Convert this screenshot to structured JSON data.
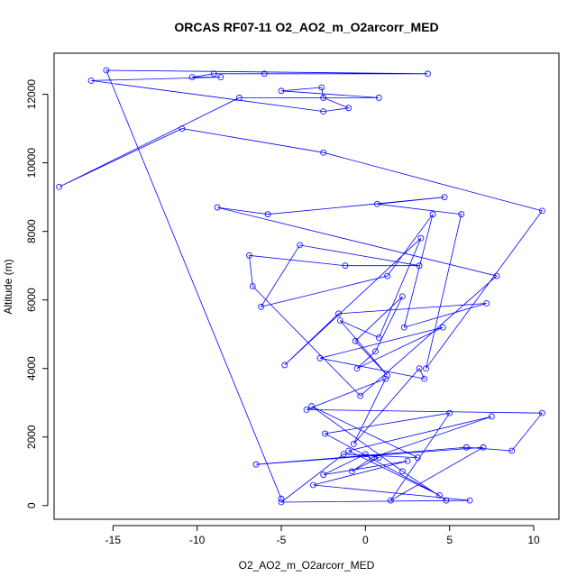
{
  "chart_data": {
    "type": "line",
    "title": "ORCAS RF07-11 O2_AO2_m_O2arcorr_MED",
    "xlabel": "O2_AO2_m_O2arcorr_MED",
    "ylabel": "Altitude (m)",
    "xlim": [
      -18.5,
      11.5
    ],
    "ylim": [
      -400,
      13200
    ],
    "xticks": [
      -15,
      -10,
      -5,
      0,
      5,
      10
    ],
    "yticks": [
      0,
      2000,
      4000,
      6000,
      8000,
      10000,
      12000
    ],
    "grid": false,
    "color": "#0000ff",
    "marker": "open-circle",
    "series": [
      {
        "x": [
          4.8,
          2.2,
          -3.2,
          3.1,
          -1.3,
          -5.0,
          6.2,
          -3.1,
          2.5,
          -2.5,
          0.0,
          0.8,
          -0.8,
          0.4,
          7.5,
          -1.0,
          4.4,
          -2.4,
          5.0,
          1.5,
          7.0,
          -6.5,
          6.0,
          8.7,
          10.5,
          -3.5,
          1.2,
          -0.7,
          3.2,
          3.5,
          -2.7,
          4.6,
          -0.5,
          0.6,
          2.2,
          -0.6,
          1.3,
          -1.5,
          0.8,
          3.3,
          -4.8,
          -1.6,
          7.2,
          2.3,
          4.0,
          1.3,
          -6.2,
          -3.9,
          3.2,
          -1.2,
          -6.9,
          -6.7,
          -0.3,
          7.8,
          -8.8,
          -5.8,
          4.7,
          0.7,
          5.7,
          3.6,
          10.5,
          -2.5,
          -10.9,
          -18.2,
          -7.5,
          0.8,
          -5.0,
          -2.6,
          -2.5,
          -1.0,
          -2.5,
          -16.3,
          -8.6,
          -10.3,
          -9.0,
          -6.0,
          3.7,
          -15.4,
          -5.0
        ],
        "y": [
          150,
          1000,
          2900,
          1400,
          1500,
          100,
          150,
          600,
          1300,
          900,
          1500,
          1400,
          1000,
          1400,
          2600,
          1600,
          300,
          2100,
          2700,
          150,
          1700,
          1200,
          1700,
          1600,
          2700,
          2800,
          3700,
          1800,
          4000,
          3700,
          4300,
          5200,
          4000,
          4500,
          6100,
          4800,
          3800,
          5400,
          4900,
          7800,
          4100,
          5600,
          5900,
          5200,
          8500,
          6700,
          5800,
          7600,
          7000,
          7000,
          7300,
          6400,
          3200,
          6700,
          8700,
          8500,
          9000,
          8800,
          8500,
          4000,
          8600,
          10300,
          11000,
          9300,
          11900,
          11900,
          12100,
          12200,
          11900,
          11600,
          11500,
          12400,
          12500,
          12500,
          12600,
          12600,
          12600,
          12700,
          200
        ]
      }
    ]
  }
}
